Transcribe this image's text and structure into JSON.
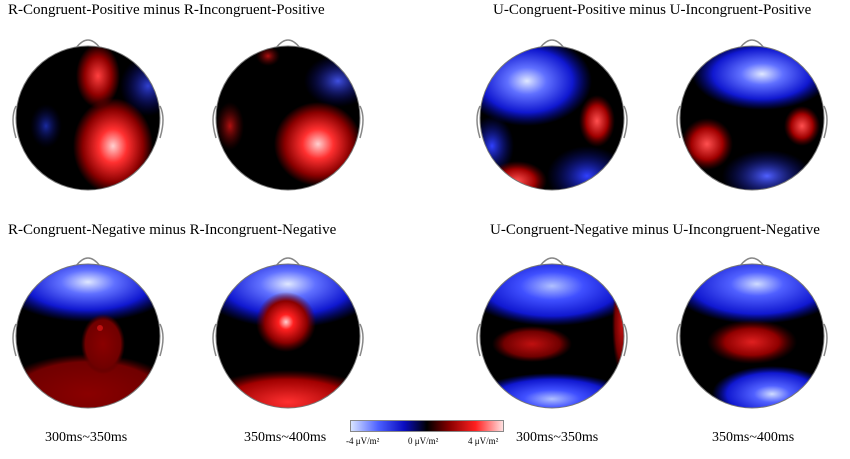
{
  "panels": {
    "top_left_title": "R-Congruent-Positive minus R-Incongruent-Positive",
    "top_right_title": "U-Congruent-Positive minus U-Incongruent-Positive",
    "bottom_left_title": "R-Congruent-Negative minus R-Incongruent-Negative",
    "bottom_right_title": "U-Congruent-Negative minus U-Incongruent-Negative"
  },
  "time_windows": {
    "left_1": "300ms~350ms",
    "left_2": "350ms~400ms",
    "right_1": "300ms~350ms",
    "right_2": "350ms~400ms"
  },
  "colorbar": {
    "min_label": "-4 μV/m²",
    "mid_label": "0 μV/m²",
    "max_label": "4 μV/m²",
    "colors": [
      "#d8e4ff",
      "#4c60ff",
      "#0a0cc0",
      "#000000",
      "#8a0000",
      "#ff2020",
      "#ffe0e0"
    ]
  },
  "colors": {
    "positive": "#ff2020",
    "negative": "#2030ff",
    "zero": "#000000"
  }
}
